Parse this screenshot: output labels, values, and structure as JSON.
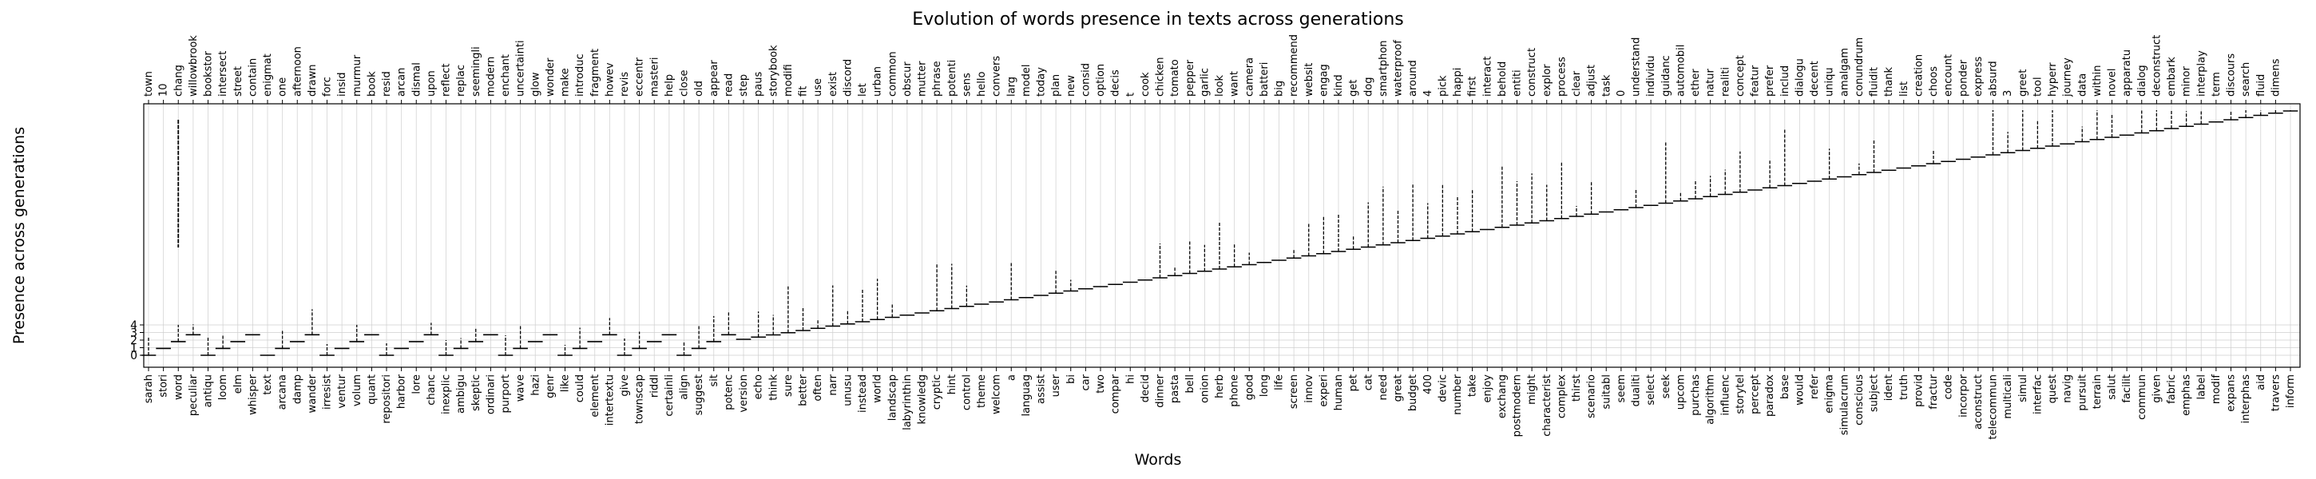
{
  "chart_data": {
    "type": "scatter",
    "title": "Evolution of words presence in texts across generations",
    "xlabel": "Words",
    "ylabel": "Presence across generations",
    "y_ticks": [
      0,
      1,
      2,
      3,
      4
    ],
    "grid": true,
    "bottom_words": [
      "sarah",
      "stori",
      "word",
      "peculiar",
      "antiqu",
      "loom",
      "elm",
      "whisper",
      "text",
      "arcana",
      "damp",
      "wander",
      "irresist",
      "ventur",
      "volum",
      "quant",
      "repositori",
      "harbor",
      "lore",
      "chanc",
      "inexplic",
      "ambigu",
      "skeptic",
      "ordinari",
      "purport",
      "wave",
      "hazi",
      "genr",
      "like",
      "could",
      "element",
      "intertextu",
      "give",
      "townscap",
      "riddl",
      "certainli",
      "align",
      "suggest",
      "sit",
      "potenc",
      "version",
      "echo",
      "think",
      "sure",
      "better",
      "often",
      "narr",
      "unusu",
      "instead",
      "world",
      "landscap",
      "labyrinthin",
      "knowledg",
      "cryptic",
      "hint",
      "control",
      "theme",
      "welcom",
      "a",
      "languag",
      "assist",
      "user",
      "bi",
      "car",
      "two",
      "compar",
      "hi",
      "decid",
      "dinner",
      "pasta",
      "bell",
      "onion",
      "herb",
      "phone",
      "good",
      "long",
      "life",
      "screen",
      "innov",
      "experi",
      "human",
      "pet",
      "cat",
      "need",
      "great",
      "budget",
      "400",
      "devic",
      "number",
      "take",
      "enjoy",
      "exchang",
      "postmodern",
      "might",
      "characterist",
      "complex",
      "thirst",
      "scenario",
      "suitabl",
      "seem",
      "dualiti",
      "select",
      "seek",
      "upcom",
      "purchas",
      "algorithm",
      "influenc",
      "storytel",
      "percept",
      "paradox",
      "base",
      "would",
      "refer",
      "enigma",
      "simulacrum",
      "conscious",
      "subject",
      "ident",
      "truth",
      "provid",
      "fractur",
      "code",
      "incorpor",
      "aconstruct",
      "telecommun",
      "multicali",
      "simul",
      "interfac",
      "quest",
      "navig",
      "pursuit",
      "terrain",
      "salut",
      "facilit",
      "commun",
      "given",
      "fabric",
      "emphas",
      "label",
      "modif",
      "expans",
      "interphas",
      "aid",
      "travers",
      "inform"
    ],
    "top_words": [
      "town",
      "10",
      "chang",
      "willowbrook",
      "bookstor",
      "intersect",
      "street",
      "contain",
      "enigmat",
      "one",
      "afternoon",
      "drawn",
      "forc",
      "insid",
      "murmur",
      "book",
      "resid",
      "arcan",
      "dismal",
      "upon",
      "reflect",
      "replac",
      "seemingli",
      "modern",
      "enchant",
      "uncertainti",
      "glow",
      "wonder",
      "make",
      "introduc",
      "fragment",
      "howev",
      "revis",
      "eccentr",
      "masteri",
      "help",
      "close",
      "old",
      "appear",
      "read",
      "step",
      "paus",
      "storybook",
      "modifi",
      "fit",
      "use",
      "exist",
      "discord",
      "let",
      "urban",
      "common",
      "obscur",
      "mutter",
      "phrase",
      "potenti",
      "sens",
      "hello",
      "convers",
      "larg",
      "model",
      "today",
      "plan",
      "new",
      "consid",
      "option",
      "decis",
      "t",
      "cook",
      "chicken",
      "tomato",
      "pepper",
      "garlic",
      "look",
      "want",
      "camera",
      "batteri",
      "big",
      "recommend",
      "websit",
      "engag",
      "kind",
      "get",
      "dog",
      "smartphon",
      "waterproof",
      "around",
      "4",
      "pick",
      "happi",
      "first",
      "interact",
      "behold",
      "entiti",
      "construct",
      "explor",
      "process",
      "clear",
      "adjust",
      "task",
      "0",
      "understand",
      "individu",
      "guidanc",
      "automobil",
      "ether",
      "natur",
      "realiti",
      "concept",
      "featur",
      "prefer",
      "includ",
      "dialogu",
      "decent",
      "uniqu",
      "amalgam",
      "conundrum",
      "fluidit",
      "thank",
      "list",
      "creation",
      "choos",
      "encount",
      "ponder",
      "express",
      "absurd",
      "3",
      "greet",
      "tool",
      "hyperr",
      "journey",
      "data",
      "within",
      "novel",
      "apparatu",
      "dialog",
      "deconstruct",
      "embark",
      "minor",
      "interplay",
      "term",
      "discours",
      "search",
      "fluid",
      "dimens"
    ]
  }
}
